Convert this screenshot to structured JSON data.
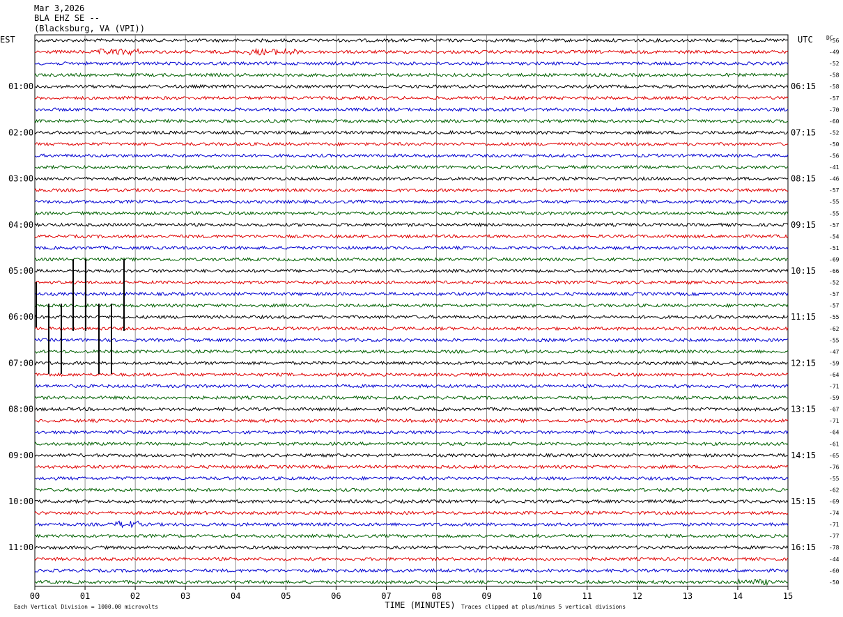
{
  "header": {
    "date": "Mar 3,2026",
    "station": "BLA EHZ SE --",
    "location": "(Blacksburg, VA (VPI))"
  },
  "chart_data": {
    "type": "line",
    "left_tz": "EST",
    "right_tz": "UTC",
    "dc_label": "DC",
    "x_label": "TIME (MINUTES)",
    "x_ticks": [
      "00",
      "01",
      "02",
      "03",
      "04",
      "05",
      "06",
      "07",
      "08",
      "09",
      "10",
      "11",
      "12",
      "13",
      "14",
      "15"
    ],
    "xlim": [
      0,
      15
    ],
    "left_hours": [
      "01:00",
      "02:00",
      "03:00",
      "04:00",
      "05:00",
      "06:00",
      "07:00",
      "08:00",
      "09:00",
      "10:00",
      "11:00"
    ],
    "right_hours": [
      "06:15",
      "07:15",
      "08:15",
      "09:15",
      "10:15",
      "11:15",
      "12:15",
      "13:15",
      "14:15",
      "15:15",
      "16:15"
    ],
    "trace_colors": [
      "#000000",
      "#e00000",
      "#0000d0",
      "#006000"
    ],
    "dc_offsets": [
      "-56",
      "-49",
      "-52",
      "-58",
      "-58",
      "-57",
      "-70",
      "-60",
      "-52",
      "-50",
      "-56",
      "-41",
      "-46",
      "-57",
      "-55",
      "-55",
      "-57",
      "-54",
      "-51",
      "-69",
      "-66",
      "-52",
      "-57",
      "-57",
      "-55",
      "-62",
      "-55",
      "-47",
      "-59",
      "-64",
      "-71",
      "-59",
      "-67",
      "-71",
      "-64",
      "-61",
      "-65",
      "-76",
      "-55",
      "-62",
      "-69",
      "-74",
      "-71",
      "-77",
      "-78",
      "-44",
      "-60",
      "-50"
    ],
    "trace_count": 48,
    "scale_note": "Each Vertical Division = 1000.00 microvolts",
    "clip_note": "Traces clipped at plus/minus 5 vertical divisions"
  }
}
